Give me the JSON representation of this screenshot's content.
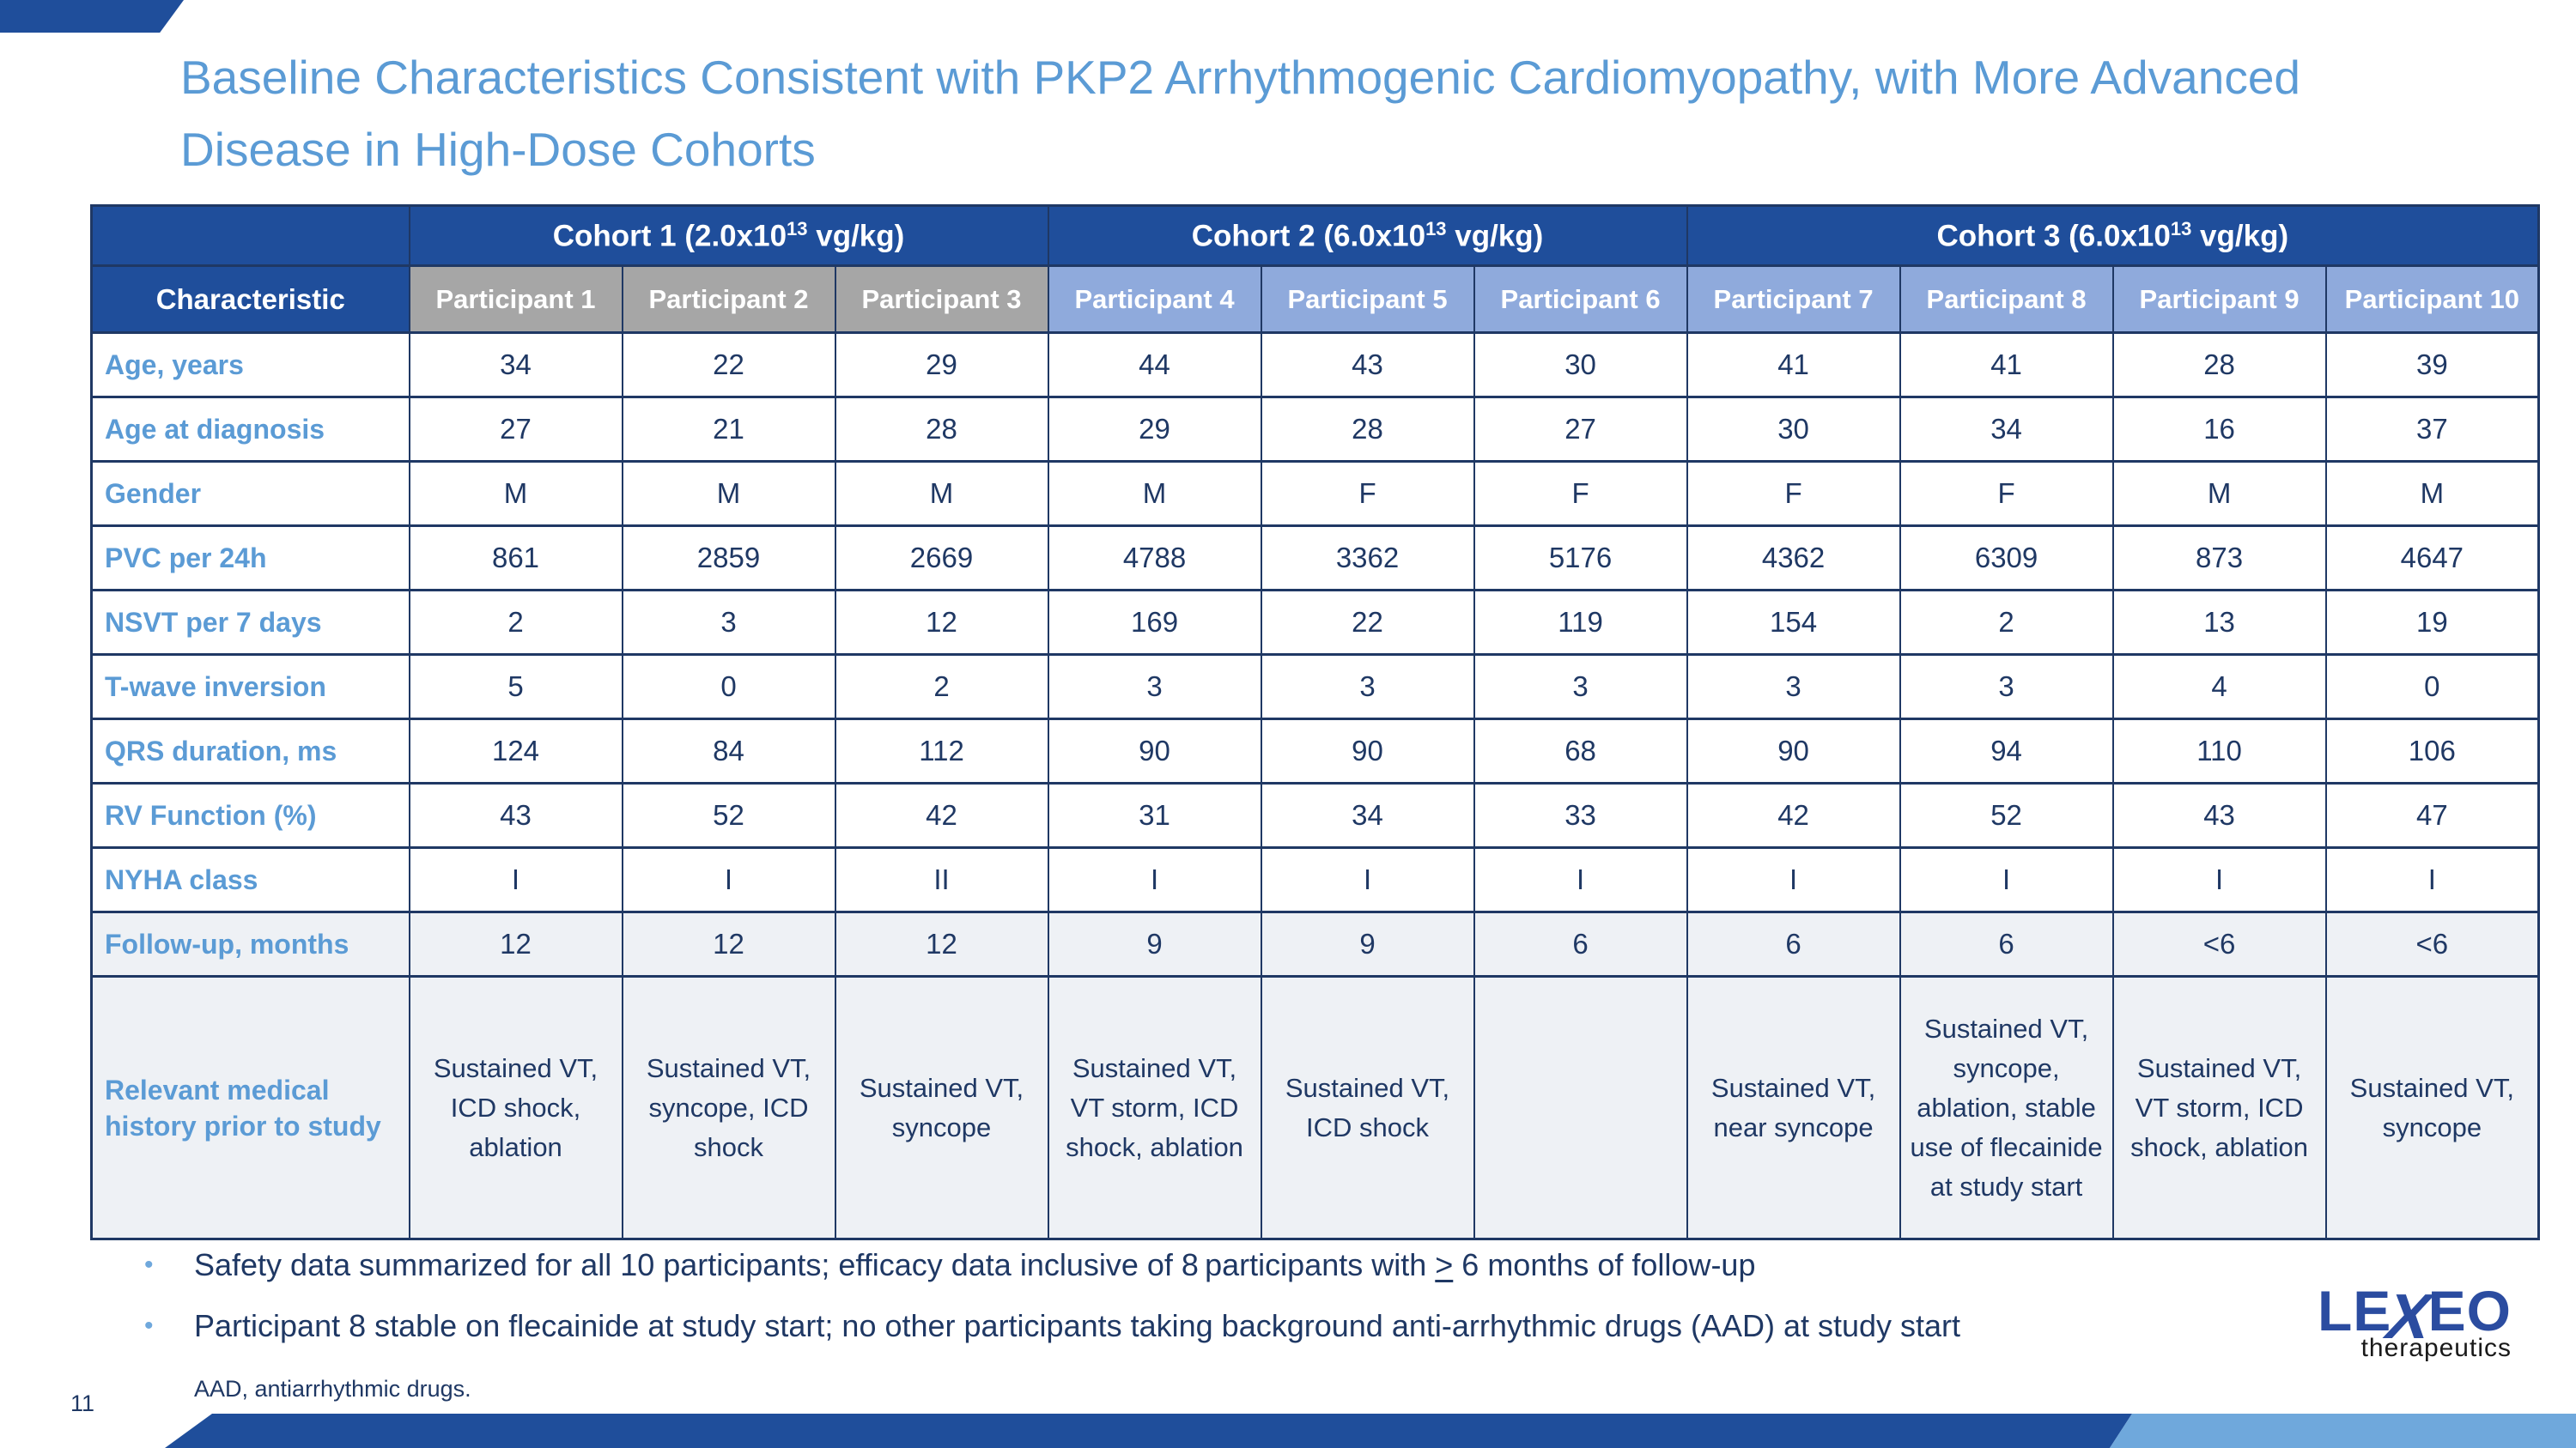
{
  "slide": {
    "title_lines": [
      "Baseline Characteristics Consistent with PKP2 Arrhythmogenic Cardiomyopathy, with More Advanced",
      "Disease in High-Dose Cohorts"
    ],
    "page_number": "11",
    "footnote": "AAD, antiarrhythmic drugs."
  },
  "table": {
    "characteristic_header": "Characteristic",
    "cohorts": [
      {
        "prefix": "Cohort 1 (2.0x10",
        "sup": "13",
        "suffix": " vg/kg)",
        "span": 3,
        "participant_style": "gray"
      },
      {
        "prefix": "Cohort 2 (6.0x10",
        "sup": "13",
        "suffix": " vg/kg)",
        "span": 3,
        "participant_style": "blue"
      },
      {
        "prefix": "Cohort 3 (6.0x10",
        "sup": "13",
        "suffix": " vg/kg)",
        "span": 4,
        "participant_style": "blue"
      }
    ],
    "participants": [
      "Participant 1",
      "Participant 2",
      "Participant 3",
      "Participant 4",
      "Participant 5",
      "Participant 6",
      "Participant 7",
      "Participant 8",
      "Participant 9",
      "Participant 10"
    ],
    "rows": [
      {
        "label": "Age, years",
        "values": [
          "34",
          "22",
          "29",
          "44",
          "43",
          "30",
          "41",
          "41",
          "28",
          "39"
        ]
      },
      {
        "label": "Age at diagnosis",
        "values": [
          "27",
          "21",
          "28",
          "29",
          "28",
          "27",
          "30",
          "34",
          "16",
          "37"
        ]
      },
      {
        "label": "Gender",
        "values": [
          "M",
          "M",
          "M",
          "M",
          "F",
          "F",
          "F",
          "F",
          "M",
          "M"
        ]
      },
      {
        "label": "PVC per 24h",
        "values": [
          "861",
          "2859",
          "2669",
          "4788",
          "3362",
          "5176",
          "4362",
          "6309",
          "873",
          "4647"
        ]
      },
      {
        "label": "NSVT per 7 days",
        "values": [
          "2",
          "3",
          "12",
          "169",
          "22",
          "119",
          "154",
          "2",
          "13",
          "19"
        ]
      },
      {
        "label": "T-wave inversion",
        "values": [
          "5",
          "0",
          "2",
          "3",
          "3",
          "3",
          "3",
          "3",
          "4",
          "0"
        ]
      },
      {
        "label": "QRS duration, ms",
        "values": [
          "124",
          "84",
          "112",
          "90",
          "90",
          "68",
          "90",
          "94",
          "110",
          "106"
        ]
      },
      {
        "label": "RV Function (%)",
        "values": [
          "43",
          "52",
          "42",
          "31",
          "34",
          "33",
          "42",
          "52",
          "43",
          "47"
        ]
      },
      {
        "label": "NYHA class",
        "values": [
          "I",
          "I",
          "II",
          "I",
          "I",
          "I",
          "I",
          "I",
          "I",
          "I"
        ]
      },
      {
        "label": "Follow-up, months",
        "values": [
          "12",
          "12",
          "12",
          "9",
          "9",
          "6",
          "6",
          "6",
          "<6",
          "<6"
        ],
        "shaded": true
      },
      {
        "label": "Relevant medical history prior to study",
        "values": [
          "Sustained VT, ICD shock, ablation",
          "Sustained VT, syncope, ICD shock",
          "Sustained VT, syncope",
          "Sustained VT, VT storm, ICD shock, ablation",
          "Sustained VT, ICD shock",
          "",
          "Sustained VT, near syncope",
          "Sustained VT, syncope, ablation, stable use of flecainide at study start",
          "Sustained VT, VT storm, ICD shock, ablation",
          "Sustained VT, syncope"
        ],
        "shaded": true,
        "tall": true
      }
    ]
  },
  "bullets": [
    {
      "pre": "Safety data summarized for all 10 participants; efficacy data inclusive of 8 participants with ",
      "symbol": ">",
      "post": " 6 months of follow-up"
    },
    {
      "pre": "Participant 8 stable on flecainide at study start; no other participants taking background anti-arrhythmic drugs (AAD) at study start",
      "symbol": "",
      "post": ""
    }
  ],
  "logo": {
    "le": "LE",
    "x": "X",
    "eo": "EO",
    "sub": "therapeutics"
  },
  "colors": {
    "dark_blue": "#1F4E9B",
    "border_navy": "#1F3864",
    "label_blue": "#5B9BD5",
    "header_gray": "#A6A6A6",
    "header_light_blue": "#8FAADC",
    "shaded_row": "#EEF1F5",
    "band_light_blue": "#6FA8DC",
    "logo_blue": "#2B4CA0"
  }
}
